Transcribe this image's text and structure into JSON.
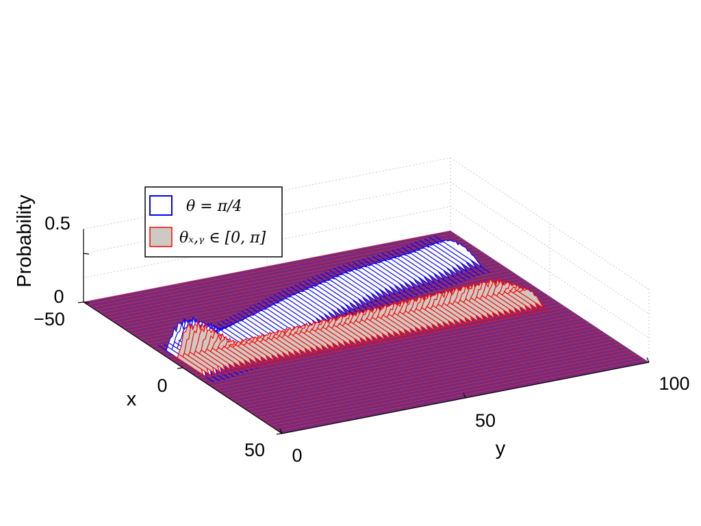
{
  "chart_data": {
    "type": "surface3d",
    "title": "",
    "xlabel": "x",
    "ylabel": "y",
    "zlabel": "Probability",
    "x_ticks": [
      "−50",
      "0",
      "50"
    ],
    "y_ticks": [
      "0",
      "50",
      "100"
    ],
    "z_ticks": [
      "0",
      "0.5"
    ],
    "xlim": [
      -50,
      50
    ],
    "ylim": [
      0,
      100
    ],
    "zlim": [
      0,
      0.75
    ],
    "grid": true,
    "legend_position": "top-left",
    "series": [
      {
        "name": "θ = π/4",
        "edge_color": "#0000ff",
        "face_color": "#ffffff",
        "ridge_x_center": [
          -2,
          -5,
          -10,
          -15,
          -20,
          -24,
          -28,
          -30,
          -32,
          -34,
          -35
        ],
        "ridge_y": [
          5,
          15,
          25,
          35,
          45,
          55,
          65,
          75,
          85,
          90,
          95
        ],
        "band_halfwidth": 10,
        "peak_height": [
          0.45,
          0.2,
          0.15,
          0.12,
          0.11,
          0.1,
          0.1,
          0.1,
          0.1,
          0.1,
          0.1
        ]
      },
      {
        "name": "θₓ,ᵧ ∈ [0, π]",
        "edge_color": "#ff0000",
        "face_color": "#cdc9c3",
        "ridge_x_center": [
          0,
          0,
          0,
          0,
          0,
          0,
          0,
          0,
          0,
          0,
          0
        ],
        "ridge_y": [
          5,
          15,
          25,
          35,
          45,
          55,
          65,
          75,
          85,
          90,
          95
        ],
        "band_halfwidth": 6,
        "peak_height": [
          0.45,
          0.15,
          0.18,
          0.2,
          0.22,
          0.24,
          0.26,
          0.28,
          0.3,
          0.22,
          0.1
        ]
      }
    ]
  }
}
